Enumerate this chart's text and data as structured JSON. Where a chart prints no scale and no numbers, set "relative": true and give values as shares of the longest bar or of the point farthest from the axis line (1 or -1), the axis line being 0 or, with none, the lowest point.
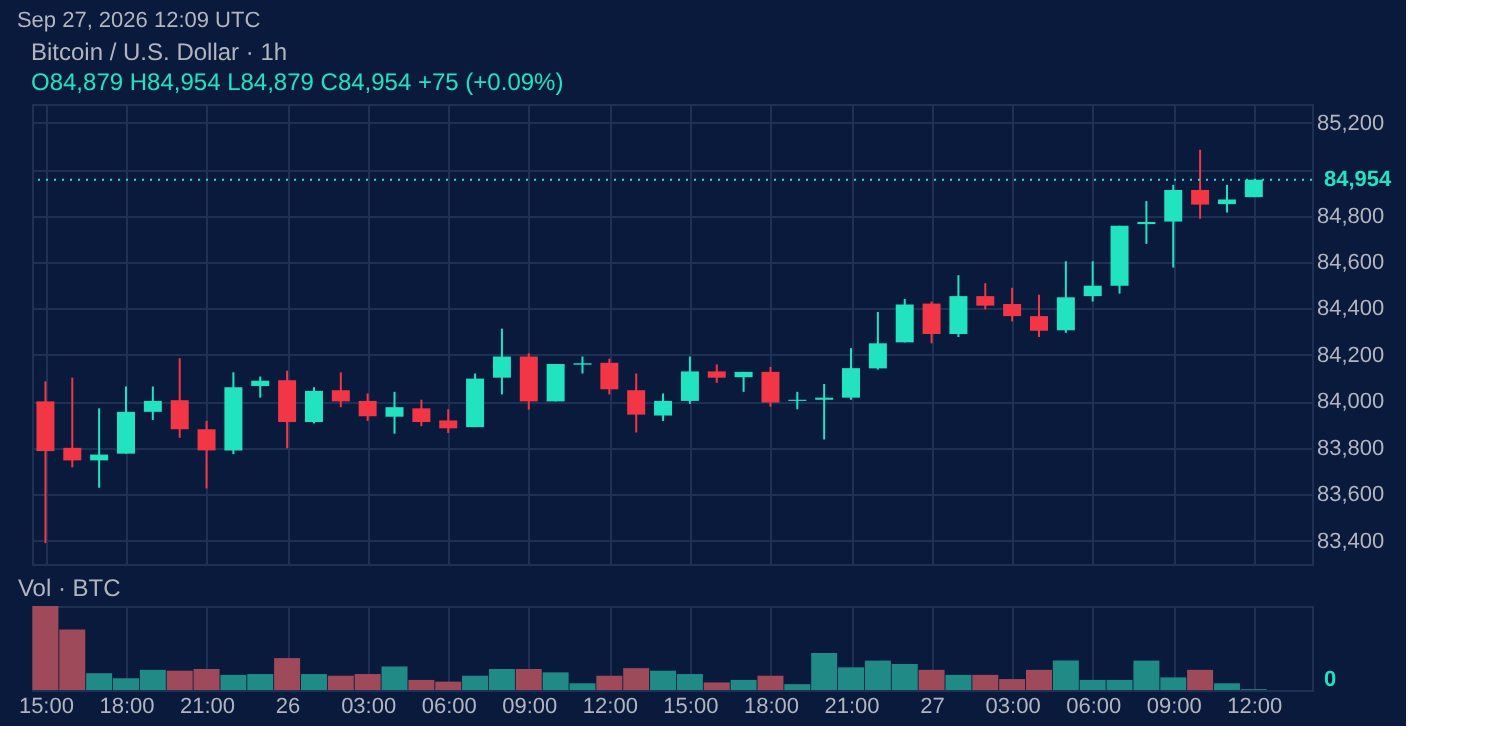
{
  "chart_data": [
    {
      "type": "candlestick",
      "title": "Bitcoin / U.S. Dollar · 1h",
      "subtitle": "O84,879 H84,954 L84,879 C84,954 +75 (+0.09%)",
      "annotations": [
        "Sep 27, 2026 12:09 UTC"
      ],
      "x": [
        "2026-09-25T15:00",
        "2026-09-25T16:00",
        "2026-09-25T17:00",
        "2026-09-25T18:00",
        "2026-09-25T19:00",
        "2026-09-25T20:00",
        "2026-09-25T21:00",
        "2026-09-25T22:00",
        "2026-09-25T23:00",
        "2026-09-26T00:00",
        "2026-09-26T01:00",
        "2026-09-26T02:00",
        "2026-09-26T03:00",
        "2026-09-26T04:00",
        "2026-09-26T05:00",
        "2026-09-26T06:00",
        "2026-09-26T07:00",
        "2026-09-26T08:00",
        "2026-09-26T09:00",
        "2026-09-26T10:00",
        "2026-09-26T11:00",
        "2026-09-26T12:00",
        "2026-09-26T13:00",
        "2026-09-26T14:00",
        "2026-09-26T15:00",
        "2026-09-26T16:00",
        "2026-09-26T17:00",
        "2026-09-26T18:00",
        "2026-09-26T19:00",
        "2026-09-26T20:00",
        "2026-09-26T21:00",
        "2026-09-26T22:00",
        "2026-09-26T23:00",
        "2026-09-27T00:00",
        "2026-09-27T01:00",
        "2026-09-27T02:00",
        "2026-09-27T03:00",
        "2026-09-27T04:00",
        "2026-09-27T05:00",
        "2026-09-27T06:00",
        "2026-09-27T07:00",
        "2026-09-27T08:00",
        "2026-09-27T09:00",
        "2026-09-27T10:00",
        "2026-09-27T11:00",
        "2026-09-27T12:00"
      ],
      "ohlc": [
        [
          84000,
          84086,
          83390,
          83786
        ],
        [
          83800,
          84102,
          83716,
          83746
        ],
        [
          83746,
          83970,
          83628,
          83771
        ],
        [
          83775,
          84064,
          83775,
          83955
        ],
        [
          83955,
          84064,
          83920,
          84002
        ],
        [
          84005,
          84186,
          83843,
          83880
        ],
        [
          83880,
          83916,
          83625,
          83789
        ],
        [
          83789,
          84125,
          83773,
          84061
        ],
        [
          84066,
          84107,
          84016,
          84089
        ],
        [
          84091,
          84132,
          83798,
          83911
        ],
        [
          83911,
          84061,
          83905,
          84045
        ],
        [
          84048,
          84125,
          83975,
          84000
        ],
        [
          84002,
          84034,
          83916,
          83936
        ],
        [
          83934,
          84041,
          83861,
          83975
        ],
        [
          83970,
          84007,
          83893,
          83911
        ],
        [
          83918,
          83966,
          83864,
          83884
        ],
        [
          83889,
          84120,
          83889,
          84098
        ],
        [
          84102,
          84313,
          84030,
          84193
        ],
        [
          84193,
          84207,
          83964,
          84000
        ],
        [
          84000,
          84161,
          84000,
          84161
        ],
        [
          84158,
          84193,
          84120,
          84164
        ],
        [
          84166,
          84184,
          84030,
          84052
        ],
        [
          84048,
          84120,
          83866,
          83943
        ],
        [
          83939,
          84034,
          83916,
          84002
        ],
        [
          84002,
          84193,
          83989,
          84129
        ],
        [
          84129,
          84159,
          84080,
          84102
        ],
        [
          84104,
          84127,
          84041,
          84127
        ],
        [
          84127,
          84148,
          83977,
          83995
        ],
        [
          84002,
          84041,
          83966,
          84007
        ],
        [
          84007,
          84075,
          83836,
          84016
        ],
        [
          84016,
          84229,
          84007,
          84143
        ],
        [
          84142,
          84385,
          84137,
          84250
        ],
        [
          84254,
          84441,
          84254,
          84417
        ],
        [
          84421,
          84430,
          84250,
          84290
        ],
        [
          84290,
          84543,
          84277,
          84453
        ],
        [
          84453,
          84509,
          84396,
          84412
        ],
        [
          84419,
          84489,
          84344,
          84367
        ],
        [
          84367,
          84459,
          84277,
          84304
        ],
        [
          84306,
          84603,
          84295,
          84448
        ],
        [
          84453,
          84603,
          84430,
          84498
        ],
        [
          84498,
          84756,
          84464,
          84756
        ],
        [
          84763,
          84862,
          84678,
          84772
        ],
        [
          84774,
          84932,
          84576,
          84910
        ],
        [
          84910,
          85083,
          84786,
          84847
        ],
        [
          84849,
          84932,
          84813,
          84869
        ],
        [
          84879,
          84954,
          84879,
          84954
        ]
      ],
      "colors": [
        "#f23645",
        "#f23645",
        "#22e3c0",
        "#22e3c0",
        "#22e3c0",
        "#f23645",
        "#f23645",
        "#22e3c0",
        "#22e3c0",
        "#f23645",
        "#22e3c0",
        "#f23645",
        "#f23645",
        "#22e3c0",
        "#f23645",
        "#f23645",
        "#22e3c0",
        "#22e3c0",
        "#f23645",
        "#22e3c0",
        "#22e3c0",
        "#f23645",
        "#f23645",
        "#22e3c0",
        "#22e3c0",
        "#f23645",
        "#22e3c0",
        "#f23645",
        "#22e3c0",
        "#22e3c0",
        "#22e3c0",
        "#22e3c0",
        "#22e3c0",
        "#f23645",
        "#22e3c0",
        "#f23645",
        "#f23645",
        "#f23645",
        "#22e3c0",
        "#22e3c0",
        "#22e3c0",
        "#22e3c0",
        "#22e3c0",
        "#f23645",
        "#22e3c0",
        "#22e3c0"
      ],
      "xlim": [
        "2026-09-25T14:30",
        "2026-09-27T14:10"
      ],
      "ylim": [
        83300,
        85280
      ],
      "yticks": [
        {
          "value": 83400,
          "label": "83,400"
        },
        {
          "value": 83600,
          "label": "83,600"
        },
        {
          "value": 83800,
          "label": "83,800"
        },
        {
          "value": 84000,
          "label": "84,000"
        },
        {
          "value": 84200,
          "label": "84,200"
        },
        {
          "value": 84400,
          "label": "84,400"
        },
        {
          "value": 84600,
          "label": "84,600"
        },
        {
          "value": 84800,
          "label": "84,800"
        },
        {
          "value": 85000,
          "label": null
        },
        {
          "value": 85200,
          "label": "85,200"
        }
      ],
      "ref_lines": [
        {
          "axis": "y",
          "value": 84954,
          "label": "84,954",
          "color": "#22e3c0",
          "line_style": "dotted"
        }
      ],
      "grid": true,
      "tick_labels": "y"
    },
    {
      "type": "bar",
      "title": "Vol · BTC",
      "relative": true,
      "annotations": [
        "0"
      ],
      "x": [
        "2026-09-25T15:00",
        "2026-09-25T16:00",
        "2026-09-25T17:00",
        "2026-09-25T18:00",
        "2026-09-25T19:00",
        "2026-09-25T20:00",
        "2026-09-25T21:00",
        "2026-09-25T22:00",
        "2026-09-25T23:00",
        "2026-09-26T00:00",
        "2026-09-26T01:00",
        "2026-09-26T02:00",
        "2026-09-26T03:00",
        "2026-09-26T04:00",
        "2026-09-26T05:00",
        "2026-09-26T06:00",
        "2026-09-26T07:00",
        "2026-09-26T08:00",
        "2026-09-26T09:00",
        "2026-09-26T10:00",
        "2026-09-26T11:00",
        "2026-09-26T12:00",
        "2026-09-26T13:00",
        "2026-09-26T14:00",
        "2026-09-26T15:00",
        "2026-09-26T16:00",
        "2026-09-26T17:00",
        "2026-09-26T18:00",
        "2026-09-26T19:00",
        "2026-09-26T20:00",
        "2026-09-26T21:00",
        "2026-09-26T22:00",
        "2026-09-26T23:00",
        "2026-09-27T00:00",
        "2026-09-27T01:00",
        "2026-09-27T02:00",
        "2026-09-27T03:00",
        "2026-09-27T04:00",
        "2026-09-27T05:00",
        "2026-09-27T06:00",
        "2026-09-27T07:00",
        "2026-09-27T08:00",
        "2026-09-27T09:00",
        "2026-09-27T10:00",
        "2026-09-27T11:00",
        "2026-09-27T12:00"
      ],
      "values": [
        1,
        0.72,
        0.2,
        0.14,
        0.24,
        0.23,
        0.25,
        0.18,
        0.19,
        0.38,
        0.19,
        0.17,
        0.19,
        0.28,
        0.12,
        0.1,
        0.17,
        0.25,
        0.25,
        0.21,
        0.08,
        0.17,
        0.26,
        0.23,
        0.19,
        0.09,
        0.12,
        0.17,
        0.07,
        0.44,
        0.27,
        0.35,
        0.31,
        0.24,
        0.18,
        0.18,
        0.13,
        0.24,
        0.35,
        0.12,
        0.12,
        0.35,
        0.15,
        0.24,
        0.08,
        0.01
      ],
      "colors": [
        "#9e4a5a",
        "#9e4a5a",
        "#1f8a86",
        "#1f8a86",
        "#1f8a86",
        "#9e4a5a",
        "#9e4a5a",
        "#1f8a86",
        "#1f8a86",
        "#9e4a5a",
        "#1f8a86",
        "#9e4a5a",
        "#9e4a5a",
        "#1f8a86",
        "#9e4a5a",
        "#9e4a5a",
        "#1f8a86",
        "#1f8a86",
        "#9e4a5a",
        "#1f8a86",
        "#1f8a86",
        "#9e4a5a",
        "#9e4a5a",
        "#1f8a86",
        "#1f8a86",
        "#9e4a5a",
        "#1f8a86",
        "#9e4a5a",
        "#1f8a86",
        "#1f8a86",
        "#1f8a86",
        "#1f8a86",
        "#1f8a86",
        "#9e4a5a",
        "#1f8a86",
        "#9e4a5a",
        "#9e4a5a",
        "#9e4a5a",
        "#1f8a86",
        "#1f8a86",
        "#1f8a86",
        "#1f8a86",
        "#1f8a86",
        "#9e4a5a",
        "#1f8a86",
        "#1f8a86"
      ],
      "xlim": [
        "2026-09-25T14:30",
        "2026-09-27T14:10"
      ],
      "xticks": [
        {
          "value": "2026-09-25T15:00",
          "label": "15:00"
        },
        {
          "value": "2026-09-25T18:00",
          "label": "18:00"
        },
        {
          "value": "2026-09-25T21:00",
          "label": "21:00"
        },
        {
          "value": "2026-09-26T00:00",
          "label": "26"
        },
        {
          "value": "2026-09-26T03:00",
          "label": "03:00"
        },
        {
          "value": "2026-09-26T06:00",
          "label": "06:00"
        },
        {
          "value": "2026-09-26T09:00",
          "label": "09:00"
        },
        {
          "value": "2026-09-26T12:00",
          "label": "12:00"
        },
        {
          "value": "2026-09-26T15:00",
          "label": "15:00"
        },
        {
          "value": "2026-09-26T18:00",
          "label": "18:00"
        },
        {
          "value": "2026-09-26T21:00",
          "label": "21:00"
        },
        {
          "value": "2026-09-27T00:00",
          "label": "27"
        },
        {
          "value": "2026-09-27T03:00",
          "label": "03:00"
        },
        {
          "value": "2026-09-27T06:00",
          "label": "06:00"
        },
        {
          "value": "2026-09-27T09:00",
          "label": "09:00"
        },
        {
          "value": "2026-09-27T12:00",
          "label": "12:00"
        }
      ],
      "grid": true,
      "tick_labels": "x"
    }
  ]
}
